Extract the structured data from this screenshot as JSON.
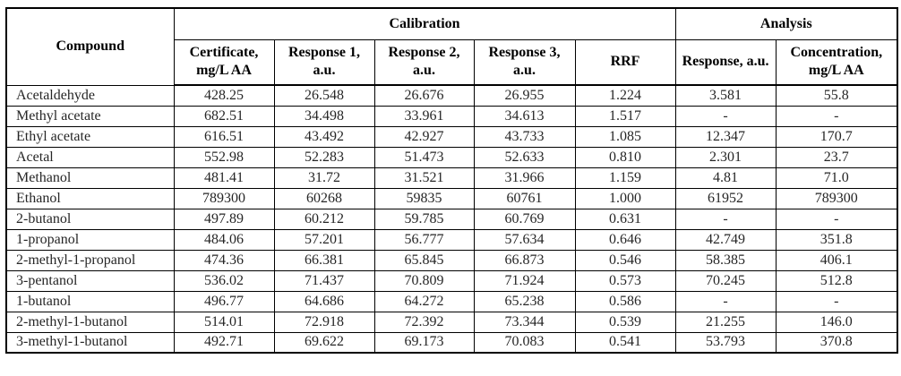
{
  "table": {
    "header": {
      "compound": "Compound",
      "calibration_group": "Calibration",
      "analysis_group": "Analysis",
      "calibration_cols": [
        "Certificate, mg/L AA",
        "Response 1, a.u.",
        "Response 2, a.u.",
        "Response 3, a.u.",
        "RRF"
      ],
      "analysis_cols": [
        "Response, a.u.",
        "Concentration, mg/L AA"
      ]
    },
    "rows": [
      {
        "compound": "Acetaldehyde",
        "certificate": "428.25",
        "response1": "26.548",
        "response2": "26.676",
        "response3": "26.955",
        "rrf": "1.224",
        "response": "3.581",
        "concentration": "55.8"
      },
      {
        "compound": "Methyl acetate",
        "certificate": "682.51",
        "response1": "34.498",
        "response2": "33.961",
        "response3": "34.613",
        "rrf": "1.517",
        "response": "-",
        "concentration": "-"
      },
      {
        "compound": "Ethyl acetate",
        "certificate": "616.51",
        "response1": "43.492",
        "response2": "42.927",
        "response3": "43.733",
        "rrf": "1.085",
        "response": "12.347",
        "concentration": "170.7"
      },
      {
        "compound": "Acetal",
        "certificate": "552.98",
        "response1": "52.283",
        "response2": "51.473",
        "response3": "52.633",
        "rrf": "0.810",
        "response": "2.301",
        "concentration": "23.7"
      },
      {
        "compound": "Methanol",
        "certificate": "481.41",
        "response1": "31.72",
        "response2": "31.521",
        "response3": "31.966",
        "rrf": "1.159",
        "response": "4.81",
        "concentration": "71.0"
      },
      {
        "compound": "Ethanol",
        "certificate": "789300",
        "response1": "60268",
        "response2": "59835",
        "response3": "60761",
        "rrf": "1.000",
        "response": "61952",
        "concentration": "789300"
      },
      {
        "compound": "2-butanol",
        "certificate": "497.89",
        "response1": "60.212",
        "response2": "59.785",
        "response3": "60.769",
        "rrf": "0.631",
        "response": "-",
        "concentration": "-"
      },
      {
        "compound": "1-propanol",
        "certificate": "484.06",
        "response1": "57.201",
        "response2": "56.777",
        "response3": "57.634",
        "rrf": "0.646",
        "response": "42.749",
        "concentration": "351.8"
      },
      {
        "compound": "2-methyl-1-propanol",
        "certificate": "474.36",
        "response1": "66.381",
        "response2": "65.845",
        "response3": "66.873",
        "rrf": "0.546",
        "response": "58.385",
        "concentration": "406.1"
      },
      {
        "compound": "3-pentanol",
        "certificate": "536.02",
        "response1": "71.437",
        "response2": "70.809",
        "response3": "71.924",
        "rrf": "0.573",
        "response": "70.245",
        "concentration": "512.8"
      },
      {
        "compound": "1-butanol",
        "certificate": "496.77",
        "response1": "64.686",
        "response2": "64.272",
        "response3": "65.238",
        "rrf": "0.586",
        "response": "-",
        "concentration": "-"
      },
      {
        "compound": "2-methyl-1-butanol",
        "certificate": "514.01",
        "response1": "72.918",
        "response2": "72.392",
        "response3": "73.344",
        "rrf": "0.539",
        "response": "21.255",
        "concentration": "146.0"
      },
      {
        "compound": "3-methyl-1-butanol",
        "certificate": "492.71",
        "response1": "69.622",
        "response2": "69.173",
        "response3": "70.083",
        "rrf": "0.541",
        "response": "53.793",
        "concentration": "370.8"
      }
    ]
  },
  "colors": {
    "border": "#000000",
    "header_text": "#000000",
    "body_text": "#262626",
    "background": "#ffffff"
  }
}
